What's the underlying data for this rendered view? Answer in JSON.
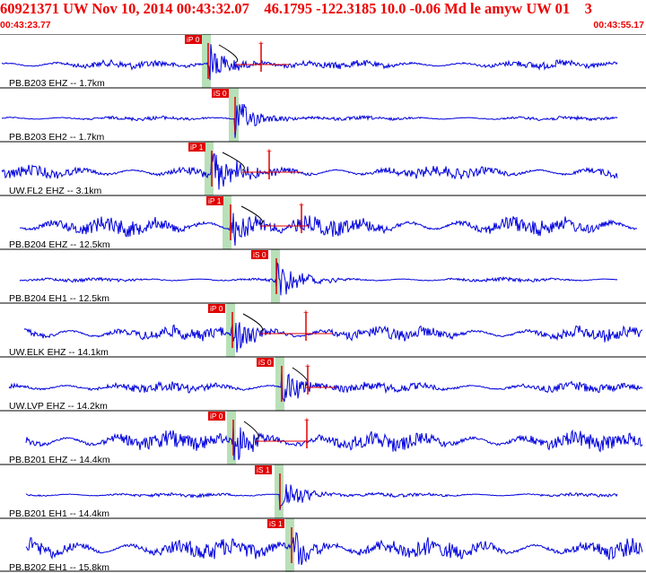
{
  "header": {
    "title": "60921371 UW Nov 10, 2014 00:43:32.07    46.1795 -122.3185 10.0 -0.06 Md le amyw UW 01    3",
    "start_time": "00:43:23.77",
    "end_time": "00:43:55.17"
  },
  "colors": {
    "trace": "#0000dd",
    "pick": "#e00000",
    "header_text": "#ee0000",
    "window_band": "#b8e0b8",
    "divider": "#000000",
    "coda": "#000000"
  },
  "traces": [
    {
      "label": "PB.B203 EHZ -- 1.7km",
      "picks": [
        {
          "text": "iP 0",
          "color": "#e00000"
        }
      ]
    },
    {
      "label": "PB.B203 EH2 -- 1.7km",
      "picks": [
        {
          "text": "iS 0",
          "color": "#e00000"
        }
      ]
    },
    {
      "label": "UW.FL2 EHZ -- 3.1km",
      "picks": [
        {
          "text": "iP 1",
          "color": "#e00000"
        }
      ]
    },
    {
      "label": "PB.B204 EHZ -- 12.5km",
      "picks": [
        {
          "text": "iP 1",
          "color": "#e00000"
        }
      ]
    },
    {
      "label": "PB.B204 EH1 -- 12.5km",
      "picks": [
        {
          "text": "iS 0",
          "color": "#e00000"
        }
      ]
    },
    {
      "label": "UW.ELK EHZ -- 14.1km",
      "picks": [
        {
          "text": "iP 0",
          "color": "#e00000"
        }
      ]
    },
    {
      "label": "UW.LVP EHZ -- 14.2km",
      "picks": [
        {
          "text": "iS 0",
          "color": "#e00000"
        }
      ]
    },
    {
      "label": "PB.B201 EHZ -- 14.4km",
      "picks": [
        {
          "text": "iP 0",
          "color": "#e00000"
        }
      ]
    },
    {
      "label": "PB.B201 EH1 -- 14.4km",
      "picks": [
        {
          "text": "iS 1",
          "color": "#e00000"
        }
      ]
    },
    {
      "label": "PB.B202 EH1 -- 15.8km",
      "picks": [
        {
          "text": "iS 1",
          "color": "#e00000"
        }
      ]
    }
  ]
}
